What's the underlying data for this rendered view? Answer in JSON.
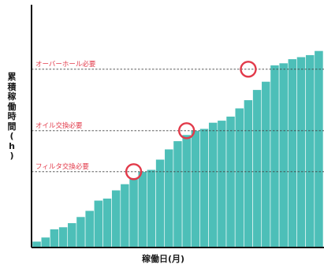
{
  "chart_data": {
    "type": "bar",
    "xlabel": "稼働日(月)",
    "ylabel_chars": [
      "累",
      "積",
      "稼",
      "働",
      "時",
      "間",
      "(",
      "h",
      ")"
    ],
    "values": [
      3,
      5,
      9,
      10,
      12,
      15,
      18,
      23,
      24,
      28,
      31,
      34,
      37,
      38,
      43,
      48,
      52,
      55,
      57,
      58,
      61,
      62,
      64,
      68,
      72,
      77,
      81,
      89,
      90,
      92,
      93,
      94,
      96
    ],
    "color": "#4dbfb8",
    "annotations": [
      {
        "label": "フィルタ交換必要",
        "threshold": 37,
        "circle_bar_index": 11,
        "color": "#e23a4a"
      },
      {
        "label": "オイル交換必要",
        "threshold": 57,
        "circle_bar_index": 17,
        "color": "#e23a4a"
      },
      {
        "label": "オーバーホール必要",
        "threshold": 87,
        "circle_bar_index": 24,
        "color": "#e23a4a"
      }
    ],
    "ylim": [
      0,
      100
    ],
    "grid": false
  }
}
